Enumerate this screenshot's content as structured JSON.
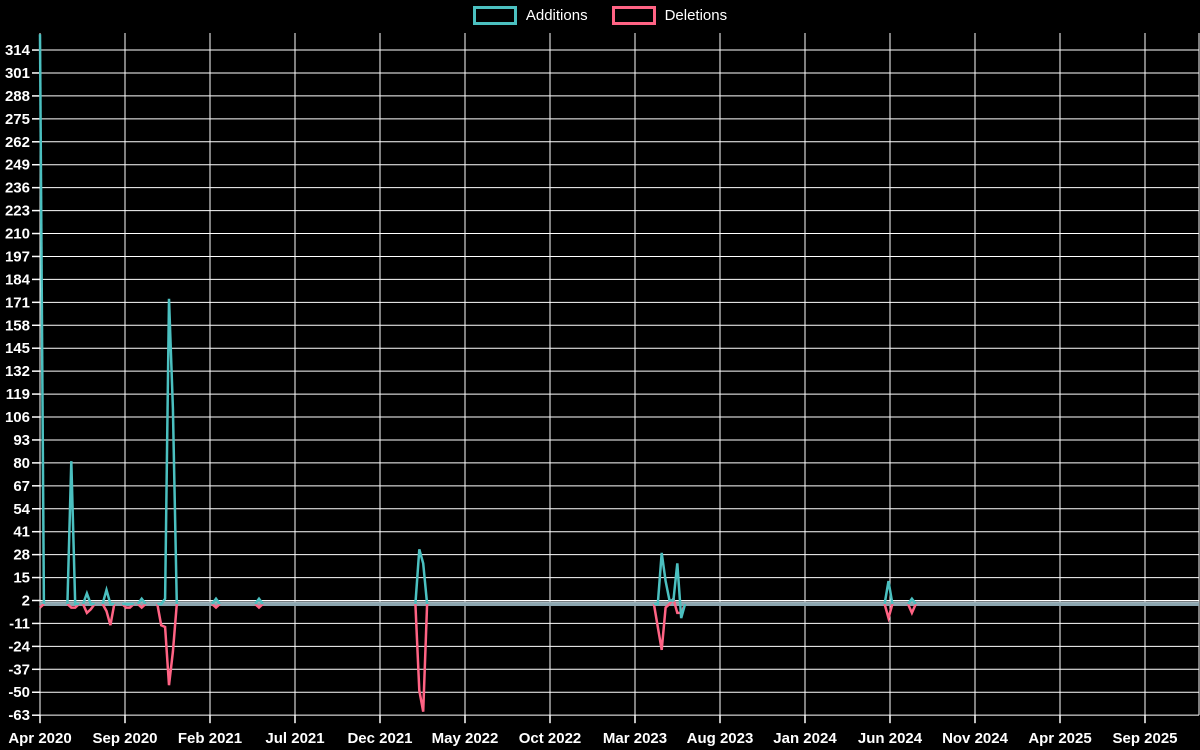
{
  "legend": {
    "items": [
      {
        "label": "Additions",
        "color": "#4bc0c0"
      },
      {
        "label": "Deletions",
        "color": "#ff6384"
      }
    ]
  },
  "colors": {
    "background": "#000000",
    "grid": "#ffffff",
    "tick_text": "#ffffff",
    "additions": "#4bc0c0",
    "deletions": "#ff6384",
    "baseline": "#8ca6b0",
    "baseline_highlight": "#c2cdd2"
  },
  "chart_data": {
    "type": "line",
    "title": "",
    "legend_position": "top",
    "grid_on": true,
    "x_axis": {
      "tick_labels": [
        "Apr 2020",
        "Sep 2020",
        "Feb 2021",
        "Jul 2021",
        "Dec 2021",
        "May 2022",
        "Oct 2022",
        "Mar 2023",
        "Aug 2023",
        "Jan 2024",
        "Jun 2024",
        "Nov 2024",
        "Apr 2025",
        "Sep 2025"
      ],
      "tick_interval_months": 5,
      "point_unit": "week"
    },
    "y_axis": {
      "tick_labels": [
        314,
        301,
        288,
        275,
        262,
        249,
        236,
        223,
        210,
        197,
        184,
        171,
        158,
        145,
        132,
        119,
        106,
        93,
        80,
        67,
        54,
        41,
        28,
        15,
        2,
        -11,
        -24,
        -37,
        -50,
        -63
      ],
      "range": [
        -63,
        323
      ]
    },
    "series": [
      {
        "name": "Additions",
        "color": "#4bc0c0"
      },
      {
        "name": "Deletions",
        "color": "#ff6384"
      }
    ],
    "baseline_value": 0,
    "segment_row_format": [
      "week_index_from_Apr_2020",
      "additions",
      "deletions"
    ],
    "segments": [
      [
        [
          0,
          323,
          -2
        ],
        [
          1,
          0,
          0
        ]
      ],
      [
        [
          7,
          0,
          0
        ],
        [
          8,
          81,
          -2
        ],
        [
          9,
          0,
          -2
        ],
        [
          10,
          0,
          0
        ]
      ],
      [
        [
          11,
          0,
          0
        ],
        [
          12,
          6,
          -5
        ],
        [
          13,
          0,
          -3
        ],
        [
          14,
          0,
          0
        ]
      ],
      [
        [
          16,
          0,
          0
        ],
        [
          17,
          8,
          -4
        ],
        [
          18,
          0,
          -12
        ],
        [
          19,
          0,
          0
        ]
      ],
      [
        [
          21,
          0,
          0
        ],
        [
          22,
          0,
          -2
        ],
        [
          23,
          0,
          -2
        ],
        [
          24,
          0,
          0
        ]
      ],
      [
        [
          25,
          0,
          0
        ],
        [
          26,
          3,
          -2
        ],
        [
          27,
          0,
          0
        ]
      ],
      [
        [
          30,
          0,
          0
        ],
        [
          31,
          0,
          -12
        ],
        [
          32,
          3,
          -13
        ],
        [
          33,
          173,
          -46
        ],
        [
          34,
          111,
          -27
        ],
        [
          35,
          0,
          0
        ]
      ],
      [
        [
          44,
          0,
          0
        ],
        [
          45,
          3,
          -2
        ],
        [
          46,
          0,
          0
        ]
      ],
      [
        [
          55,
          0,
          0
        ],
        [
          56,
          3,
          -2
        ],
        [
          57,
          0,
          0
        ]
      ],
      [
        [
          96,
          0,
          0
        ],
        [
          97,
          31,
          -49
        ],
        [
          98,
          23,
          -61
        ],
        [
          99,
          0,
          0
        ]
      ],
      [
        [
          157,
          0,
          0
        ],
        [
          158,
          0,
          -13
        ],
        [
          159,
          29,
          -26
        ],
        [
          160,
          13,
          -2
        ],
        [
          161,
          2,
          0
        ],
        [
          162,
          2,
          3
        ],
        [
          163,
          23,
          -5
        ],
        [
          164,
          -8,
          -5
        ],
        [
          165,
          0,
          0
        ]
      ],
      [
        [
          216,
          0,
          0
        ],
        [
          217,
          13,
          -8
        ],
        [
          218,
          0,
          0
        ]
      ],
      [
        [
          222,
          0,
          0
        ],
        [
          223,
          3,
          -5
        ],
        [
          224,
          0,
          0
        ]
      ]
    ]
  }
}
